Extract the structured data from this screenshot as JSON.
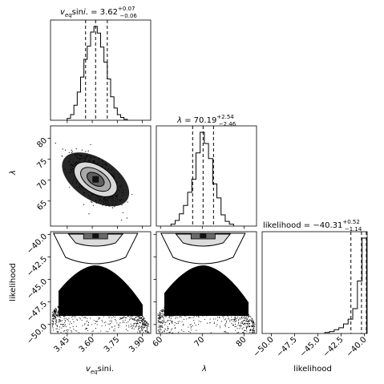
{
  "chart_data": [
    {
      "type": "histogram",
      "panel": "v-hist",
      "title_param": "v_eq sin i",
      "title_value": "3.62",
      "title_plus": "+0.07",
      "title_minus": "−0.06",
      "x_range": [
        3.35,
        3.95
      ],
      "bins": [
        {
          "x": 3.46,
          "h": 0.02
        },
        {
          "x": 3.48,
          "h": 0.06
        },
        {
          "x": 3.5,
          "h": 0.16
        },
        {
          "x": 3.52,
          "h": 0.3
        },
        {
          "x": 3.54,
          "h": 0.46
        },
        {
          "x": 3.56,
          "h": 0.65
        },
        {
          "x": 3.58,
          "h": 0.79
        },
        {
          "x": 3.6,
          "h": 0.94
        },
        {
          "x": 3.62,
          "h": 1.0
        },
        {
          "x": 3.64,
          "h": 0.93
        },
        {
          "x": 3.66,
          "h": 0.78
        },
        {
          "x": 3.68,
          "h": 0.62
        },
        {
          "x": 3.7,
          "h": 0.44
        },
        {
          "x": 3.72,
          "h": 0.25
        },
        {
          "x": 3.74,
          "h": 0.13
        },
        {
          "x": 3.76,
          "h": 0.06
        },
        {
          "x": 3.78,
          "h": 0.03
        },
        {
          "x": 3.8,
          "h": 0.01
        }
      ],
      "quantiles": [
        3.56,
        3.62,
        3.69
      ]
    },
    {
      "type": "histogram",
      "panel": "lambda-hist",
      "title_param": "λ",
      "title_value": "70.19",
      "title_plus": "+2.54",
      "title_minus": "−2.46",
      "x_range": [
        59,
        83
      ],
      "bins": [
        {
          "x": 63,
          "h": 0.02
        },
        {
          "x": 64,
          "h": 0.06
        },
        {
          "x": 65,
          "h": 0.13
        },
        {
          "x": 66,
          "h": 0.22
        },
        {
          "x": 67,
          "h": 0.36
        },
        {
          "x": 68,
          "h": 0.5
        },
        {
          "x": 69,
          "h": 0.78
        },
        {
          "x": 70,
          "h": 1.0
        },
        {
          "x": 71,
          "h": 0.88
        },
        {
          "x": 72,
          "h": 0.72
        },
        {
          "x": 73,
          "h": 0.45
        },
        {
          "x": 74,
          "h": 0.3
        },
        {
          "x": 75,
          "h": 0.12
        },
        {
          "x": 76,
          "h": 0.05
        },
        {
          "x": 77,
          "h": 0.02
        }
      ],
      "quantiles": [
        67.7,
        70.2,
        72.7
      ]
    },
    {
      "type": "histogram",
      "panel": "likelihood-hist",
      "title_param": "likelihood",
      "title_value": "−40.31",
      "title_plus": "+0.52",
      "title_minus": "−1.14",
      "x_range": [
        -51,
        -39.7
      ],
      "bins": [
        {
          "x": -44.0,
          "h": 0.01
        },
        {
          "x": -43.5,
          "h": 0.02
        },
        {
          "x": -43.0,
          "h": 0.04
        },
        {
          "x": -42.5,
          "h": 0.06
        },
        {
          "x": -42.0,
          "h": 0.1
        },
        {
          "x": -41.5,
          "h": 0.15
        },
        {
          "x": -41.0,
          "h": 0.26
        },
        {
          "x": -40.5,
          "h": 0.55
        },
        {
          "x": -40.0,
          "h": 1.0
        }
      ],
      "quantiles": [
        -41.45,
        -40.31,
        -39.79
      ]
    },
    {
      "type": "scatter",
      "panel": "v-lambda",
      "x_range": [
        3.35,
        3.95
      ],
      "y_range": [
        59,
        83
      ],
      "center": [
        3.62,
        70.19
      ],
      "spread": [
        0.06,
        2.5
      ],
      "correlation": -0.6
    },
    {
      "type": "scatter",
      "panel": "v-likelihood",
      "x_range": [
        3.35,
        3.95
      ],
      "y_range": [
        -51,
        -39.7
      ],
      "peak": -40.0
    },
    {
      "type": "scatter",
      "panel": "lambda-likelihood",
      "x_range": [
        59,
        83
      ],
      "y_range": [
        -51,
        -39.7
      ],
      "peak": -40.0
    }
  ],
  "axes": {
    "v_xticks": [
      "3.45",
      "3.60",
      "3.75",
      "3.90"
    ],
    "v_xtick_values": [
      3.45,
      3.6,
      3.75,
      3.9
    ],
    "lambda_ticks": [
      "60",
      "70",
      "80"
    ],
    "lambda_tick_values": [
      60,
      70,
      80
    ],
    "lambda_yticks": [
      "65",
      "70",
      "75",
      "80"
    ],
    "lambda_ytick_values": [
      65,
      70,
      75,
      80
    ],
    "likelihood_ticks": [
      "−50.0",
      "−47.5",
      "−45.0",
      "−42.5",
      "−40.0"
    ],
    "likelihood_tick_values": [
      -50,
      -47.5,
      -45,
      -42.5,
      -40
    ],
    "xlabel_v": "v",
    "xlabel_v_sub": "eq",
    "xlabel_v_rest": "sini.",
    "xlabel_lambda": "λ",
    "xlabel_likelihood": "likelihood",
    "ylabel_lambda": "λ",
    "ylabel_likelihood": "likelihood"
  }
}
